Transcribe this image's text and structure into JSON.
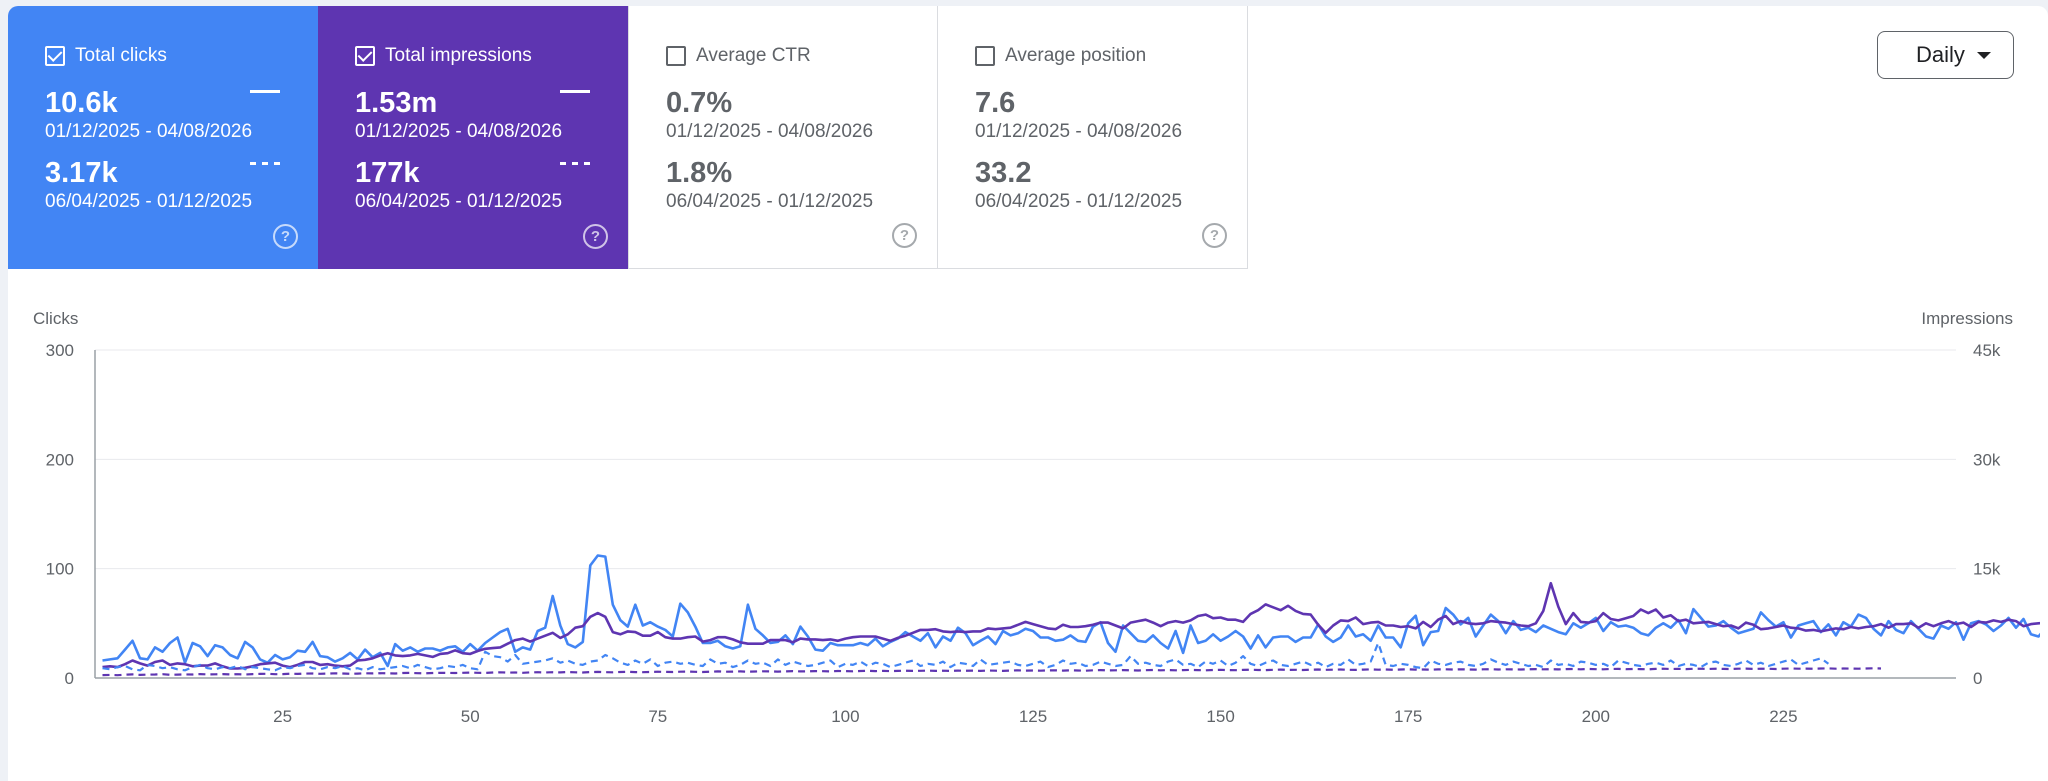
{
  "cards": [
    {
      "label": "Total clicks",
      "checked": true,
      "value_current": "10.6k",
      "range_current": "01/12/2025 - 04/08/2026",
      "value_previous": "3.17k",
      "range_previous": "06/04/2025 - 01/12/2025"
    },
    {
      "label": "Total impressions",
      "checked": true,
      "value_current": "1.53m",
      "range_current": "01/12/2025 - 04/08/2026",
      "value_previous": "177k",
      "range_previous": "06/04/2025 - 01/12/2025"
    },
    {
      "label": "Average CTR",
      "checked": false,
      "value_current": "0.7%",
      "range_current": "01/12/2025 - 04/08/2026",
      "value_previous": "1.8%",
      "range_previous": "06/04/2025 - 01/12/2025"
    },
    {
      "label": "Average position",
      "checked": false,
      "value_current": "7.6",
      "range_current": "01/12/2025 - 04/08/2026",
      "value_previous": "33.2",
      "range_previous": "06/04/2025 - 01/12/2025"
    }
  ],
  "help_glyph": "?",
  "granularity": {
    "selected": "Daily"
  },
  "colors": {
    "clicks": "#4285f4",
    "impressions": "#5e35b1",
    "grid": "#e8eaed",
    "axis": "#9aa0a6"
  },
  "chart_data": {
    "type": "line",
    "left_axis_label": "Clicks",
    "right_axis_label": "Impressions",
    "y_left": {
      "ticks": [
        "0",
        "100",
        "200",
        "300"
      ],
      "range": [
        0,
        300
      ]
    },
    "y_right": {
      "ticks": [
        "0",
        "15k",
        "30k",
        "45k"
      ],
      "range": [
        0,
        45000
      ]
    },
    "x_ticks": [
      25,
      50,
      75,
      100,
      125,
      150,
      175,
      200,
      225
    ],
    "x_range": [
      0,
      248
    ],
    "grid": true,
    "series": [
      {
        "name": "Total clicks",
        "style": "solid",
        "axis": "left",
        "color": "#4285f4",
        "values": [
          16,
          17,
          18,
          26,
          34,
          18,
          17,
          28,
          24,
          32,
          37,
          14,
          32,
          29,
          20,
          30,
          28,
          21,
          18,
          33,
          28,
          17,
          14,
          21,
          17,
          19,
          25,
          24,
          33,
          20,
          19,
          15,
          18,
          23,
          17,
          26,
          19,
          23,
          11,
          31,
          25,
          28,
          24,
          27,
          27,
          25,
          28,
          29,
          24,
          31,
          25,
          32,
          37,
          42,
          45,
          24,
          28,
          26,
          43,
          46,
          75,
          48,
          31,
          28,
          33,
          103,
          112,
          111,
          67,
          53,
          47,
          67,
          48,
          51,
          47,
          44,
          38,
          68,
          60,
          47,
          32,
          32,
          34,
          29,
          27,
          29,
          67,
          45,
          39,
          32,
          33,
          39,
          31,
          47,
          38,
          26,
          25,
          32,
          30,
          30,
          30,
          32,
          30,
          36,
          29,
          33,
          36,
          42,
          38,
          34,
          41,
          28,
          38,
          34,
          46,
          41,
          30,
          34,
          38,
          31,
          43,
          39,
          41,
          45,
          43,
          37,
          37,
          34,
          35,
          39,
          34,
          33,
          47,
          51,
          32,
          24,
          48,
          41,
          34,
          33,
          39,
          32,
          27,
          43,
          23,
          48,
          32,
          34,
          40,
          34,
          38,
          43,
          38,
          27,
          39,
          28,
          37,
          38,
          38,
          33,
          37,
          37,
          49,
          38,
          33,
          37,
          48,
          38,
          40,
          34,
          48,
          37,
          37,
          28,
          50,
          57,
          30,
          42,
          43,
          64,
          58,
          49,
          55,
          38,
          48,
          58,
          52,
          41,
          52,
          44,
          46,
          42,
          48,
          45,
          42,
          40,
          50,
          46,
          50,
          55,
          43,
          51,
          47,
          48,
          46,
          41,
          39,
          46,
          50,
          46,
          53,
          41,
          63,
          55,
          47,
          48,
          52,
          46,
          41,
          43,
          45,
          60,
          53,
          47,
          51,
          37,
          48,
          50,
          52,
          42,
          49,
          39,
          51,
          47,
          58,
          55,
          45,
          39,
          52,
          44,
          41,
          52,
          45,
          38,
          36,
          48,
          45,
          51,
          35,
          50,
          52,
          49,
          43,
          48,
          55,
          46,
          54,
          40,
          38,
          46,
          50,
          55,
          39,
          58,
          61,
          52,
          57,
          56
        ]
      },
      {
        "name": "Total impressions",
        "style": "solid",
        "axis": "right",
        "color": "#5e35b1",
        "values": [
          1500,
          1600,
          1500,
          1900,
          2400,
          2000,
          1700,
          2200,
          2400,
          1800,
          2000,
          1900,
          1600,
          1700,
          1700,
          2000,
          1600,
          1300,
          1300,
          1400,
          1600,
          1900,
          2000,
          2100,
          1700,
          1500,
          1800,
          2200,
          2200,
          1800,
          1900,
          1700,
          1600,
          1700,
          2400,
          2500,
          2700,
          3100,
          3400,
          3100,
          3000,
          3100,
          3300,
          3100,
          2900,
          3300,
          3400,
          3800,
          3400,
          3300,
          3700,
          4000,
          4100,
          4200,
          4700,
          5200,
          5400,
          5000,
          5400,
          5800,
          6200,
          5500,
          6000,
          6900,
          7100,
          8400,
          8900,
          8400,
          6300,
          6000,
          6400,
          6300,
          5800,
          5800,
          6300,
          5600,
          5400,
          5400,
          5600,
          5700,
          5000,
          5200,
          5600,
          5600,
          5300,
          4900,
          4700,
          4700,
          4700,
          5200,
          5200,
          5200,
          4900,
          5400,
          5300,
          5300,
          5200,
          5300,
          5100,
          5400,
          5600,
          5700,
          5700,
          5700,
          5400,
          5100,
          5500,
          5800,
          6200,
          6600,
          6600,
          6700,
          6400,
          6300,
          6400,
          6300,
          6400,
          6400,
          6800,
          6700,
          6800,
          6900,
          7300,
          7700,
          7400,
          7100,
          6800,
          6700,
          7300,
          7000,
          7000,
          7100,
          7300,
          7600,
          7600,
          7200,
          6800,
          7600,
          7800,
          8000,
          7600,
          7100,
          7600,
          7800,
          7600,
          7900,
          8500,
          8700,
          8200,
          8300,
          8000,
          8000,
          7700,
          8800,
          9300,
          10100,
          9700,
          9300,
          9900,
          9200,
          8800,
          8700,
          7300,
          6200,
          7200,
          7900,
          7800,
          8300,
          7400,
          7600,
          7700,
          7200,
          7200,
          7000,
          7100,
          6800,
          7700,
          7000,
          8000,
          8500,
          7400,
          7800,
          7500,
          7400,
          7500,
          7800,
          7700,
          7600,
          7400,
          7200,
          7100,
          7500,
          9200,
          13000,
          9800,
          7400,
          8900,
          7700,
          7600,
          7800,
          8900,
          8100,
          7900,
          8200,
          8500,
          9400,
          8900,
          9400,
          8300,
          8600,
          7800,
          8000,
          7500,
          7600,
          7700,
          7400,
          7100,
          7200,
          6800,
          7600,
          7300,
          6700,
          6800,
          7000,
          7200,
          6900,
          6800,
          6500,
          6600,
          6400,
          6600,
          6800,
          6700,
          7000,
          6800,
          7000,
          7100,
          7400,
          6900,
          7400,
          7400,
          7500,
          6900,
          7500,
          7100,
          7500,
          7800,
          7400,
          7600,
          7000,
          7700,
          7600,
          7900,
          7700,
          8000,
          7800,
          7100,
          7400,
          7500,
          7600,
          7700,
          7900,
          7700,
          7400,
          7300,
          7300,
          7100,
          6900,
          7000,
          6900
        ]
      },
      {
        "name": "Total clicks (previous)",
        "style": "dashed",
        "axis": "left",
        "color": "#4285f4",
        "values": [
          9,
          8,
          10,
          11,
          8,
          7,
          12,
          11,
          9,
          10,
          8,
          7,
          10,
          12,
          9,
          8,
          10,
          9,
          11,
          8,
          10,
          9,
          8,
          7,
          10,
          9,
          11,
          12,
          9,
          8,
          10,
          9,
          11,
          8,
          9,
          7,
          10,
          8,
          9,
          10,
          11,
          9,
          12,
          10,
          8,
          9,
          11,
          10,
          12,
          9,
          8,
          24,
          20,
          19,
          15,
          21,
          13,
          14,
          15,
          16,
          18,
          14,
          16,
          13,
          12,
          15,
          16,
          21,
          18,
          14,
          12,
          16,
          13,
          17,
          11,
          14,
          15,
          13,
          14,
          12,
          11,
          17,
          13,
          14,
          10,
          12,
          16,
          13,
          14,
          11,
          17,
          12,
          15,
          13,
          11,
          12,
          14,
          16,
          10,
          13,
          12,
          15,
          11,
          14,
          13,
          10,
          12,
          14,
          16,
          11,
          13,
          12,
          15,
          10,
          14,
          13,
          11,
          17,
          12,
          13,
          14,
          15,
          12,
          11,
          13,
          15,
          10,
          12,
          16,
          13,
          14,
          11,
          12,
          15,
          13,
          11,
          12,
          20,
          13,
          14,
          12,
          11,
          15,
          17,
          12,
          13,
          10,
          15,
          13,
          16,
          11,
          14,
          20,
          13,
          11,
          14,
          16,
          12,
          11,
          13,
          15,
          12,
          14,
          10,
          13,
          12,
          17,
          12,
          13,
          15,
          32,
          12,
          11,
          13,
          12,
          10,
          9,
          16,
          13,
          12,
          14,
          15,
          12,
          11,
          13,
          17,
          14,
          12,
          15,
          13,
          11,
          12,
          10,
          16,
          12,
          13,
          11,
          15,
          14,
          12,
          13,
          10,
          16,
          14,
          12,
          11,
          13,
          14,
          12,
          16,
          11,
          13,
          12,
          10,
          14,
          15,
          12,
          11,
          13,
          16,
          12,
          14,
          11,
          13,
          15,
          17,
          12,
          14,
          16,
          18,
          13
        ]
      },
      {
        "name": "Total impressions (previous)",
        "style": "dashed",
        "axis": "right",
        "color": "#5e35b1",
        "values": [
          400,
          420,
          380,
          450,
          500,
          430,
          460,
          480,
          520,
          440,
          470,
          500,
          480,
          530,
          490,
          510,
          540,
          500,
          520,
          480,
          540,
          560,
          580,
          520,
          540,
          590,
          560,
          600,
          620,
          580,
          600,
          640,
          620,
          580,
          610,
          650,
          630,
          660,
          640,
          620,
          680,
          700,
          660,
          640,
          690,
          720,
          700,
          680,
          710,
          740,
          720,
          700,
          750,
          780,
          740,
          760,
          720,
          770,
          800,
          760,
          790,
          770,
          820,
          780,
          760,
          810,
          840,
          800,
          780,
          820,
          850,
          810,
          790,
          830,
          870,
          840,
          820,
          860,
          880,
          850,
          830,
          870,
          900,
          860,
          880,
          910,
          870,
          890,
          920,
          900,
          880,
          910,
          940,
          900,
          920,
          950,
          930,
          910,
          960,
          940,
          920,
          960,
          990,
          950,
          970,
          940,
          980,
          1000,
          970,
          990,
          1010,
          980,
          1000,
          970,
          1020,
          990,
          1010,
          980,
          1030,
          1000,
          980,
          1020,
          1050,
          1010,
          1030,
          1000,
          1040,
          1060,
          1020,
          1050,
          1030,
          1000,
          1060,
          1080,
          1040,
          1060,
          1090,
          1050,
          1030,
          1070,
          1100,
          1060,
          1080,
          1050,
          1090,
          1110,
          1080,
          1060,
          1100,
          1120,
          1090,
          1070,
          1110,
          1140,
          1100,
          1080,
          1120,
          1150,
          1110,
          1130,
          1100,
          1140,
          1160,
          1120,
          1140,
          1170,
          1130,
          1110,
          1150,
          1180,
          1140,
          1160,
          1130,
          1170,
          1190,
          1150,
          1170,
          1140,
          1180,
          1200,
          1160,
          1190,
          1170,
          1150,
          1190,
          1210,
          1170,
          1200,
          1180,
          1160,
          1200,
          1220,
          1190,
          1210,
          1180,
          1220,
          1240,
          1200,
          1230,
          1210,
          1190,
          1230,
          1250,
          1210,
          1240,
          1220,
          1200,
          1250,
          1270,
          1230,
          1250,
          1220,
          1260,
          1280,
          1240,
          1270,
          1250,
          1230,
          1270,
          1290,
          1250,
          1280,
          1260,
          1240,
          1280,
          1300,
          1270,
          1290,
          1260,
          1300,
          1320,
          1280,
          1310,
          1290,
          1270,
          1310,
          1330,
          1300
        ]
      }
    ]
  }
}
